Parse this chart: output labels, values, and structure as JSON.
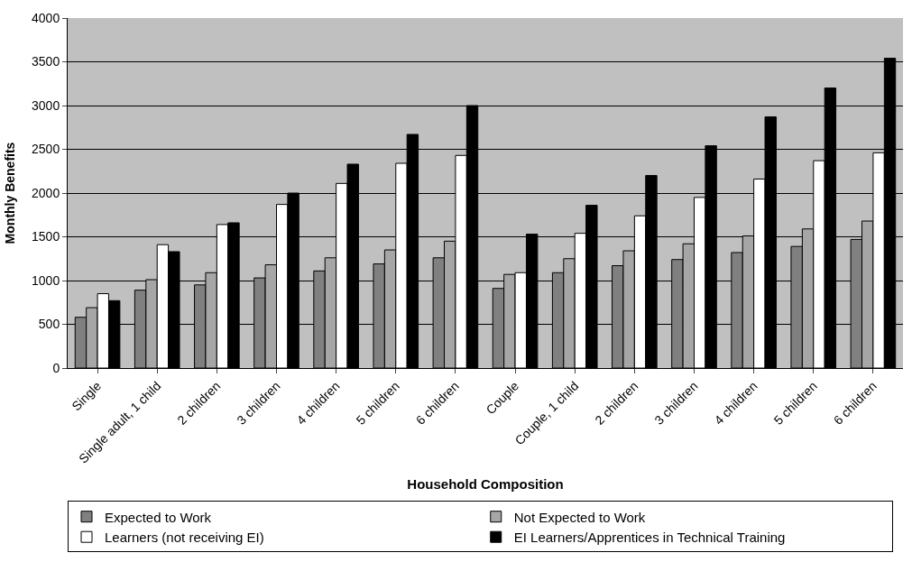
{
  "chart_data": {
    "type": "bar",
    "xlabel": "Household Composition",
    "ylabel": "Monthly Benefits",
    "categories": [
      "Single",
      "Single adult, 1 child",
      "2 children",
      "3 children",
      "4 children",
      "5 children",
      "6 children",
      "Couple",
      "Couple, 1 child",
      "2 children",
      "3 children",
      "4 children",
      "5 children",
      "6 children"
    ],
    "series": [
      {
        "name": "Expected to Work",
        "color": "#808080",
        "values": [
          580,
          890,
          950,
          1030,
          1110,
          1190,
          1260,
          910,
          1090,
          1170,
          1240,
          1320,
          1390,
          1470
        ]
      },
      {
        "name": "Not Expected to Work",
        "color": "#a6a6a6",
        "values": [
          690,
          1010,
          1090,
          1180,
          1260,
          1350,
          1450,
          1070,
          1250,
          1340,
          1420,
          1510,
          1590,
          1680
        ]
      },
      {
        "name": "Learners (not receiving EI)",
        "color": "#ffffff",
        "values": [
          850,
          1410,
          1640,
          1870,
          2110,
          2340,
          2430,
          1090,
          1540,
          1740,
          1950,
          2160,
          2370,
          2460
        ]
      },
      {
        "name": "EI Learners/Apprentices in Technical Training",
        "color": "#000000",
        "values": [
          770,
          1330,
          1660,
          2000,
          2330,
          2670,
          3000,
          1530,
          1860,
          2200,
          2540,
          2870,
          3200,
          3540
        ]
      }
    ],
    "ylim": [
      0,
      4000
    ],
    "yticks": [
      0,
      500,
      1000,
      1500,
      2000,
      2500,
      3000,
      3500,
      4000
    ],
    "grid": "y",
    "legend": "bottom"
  }
}
